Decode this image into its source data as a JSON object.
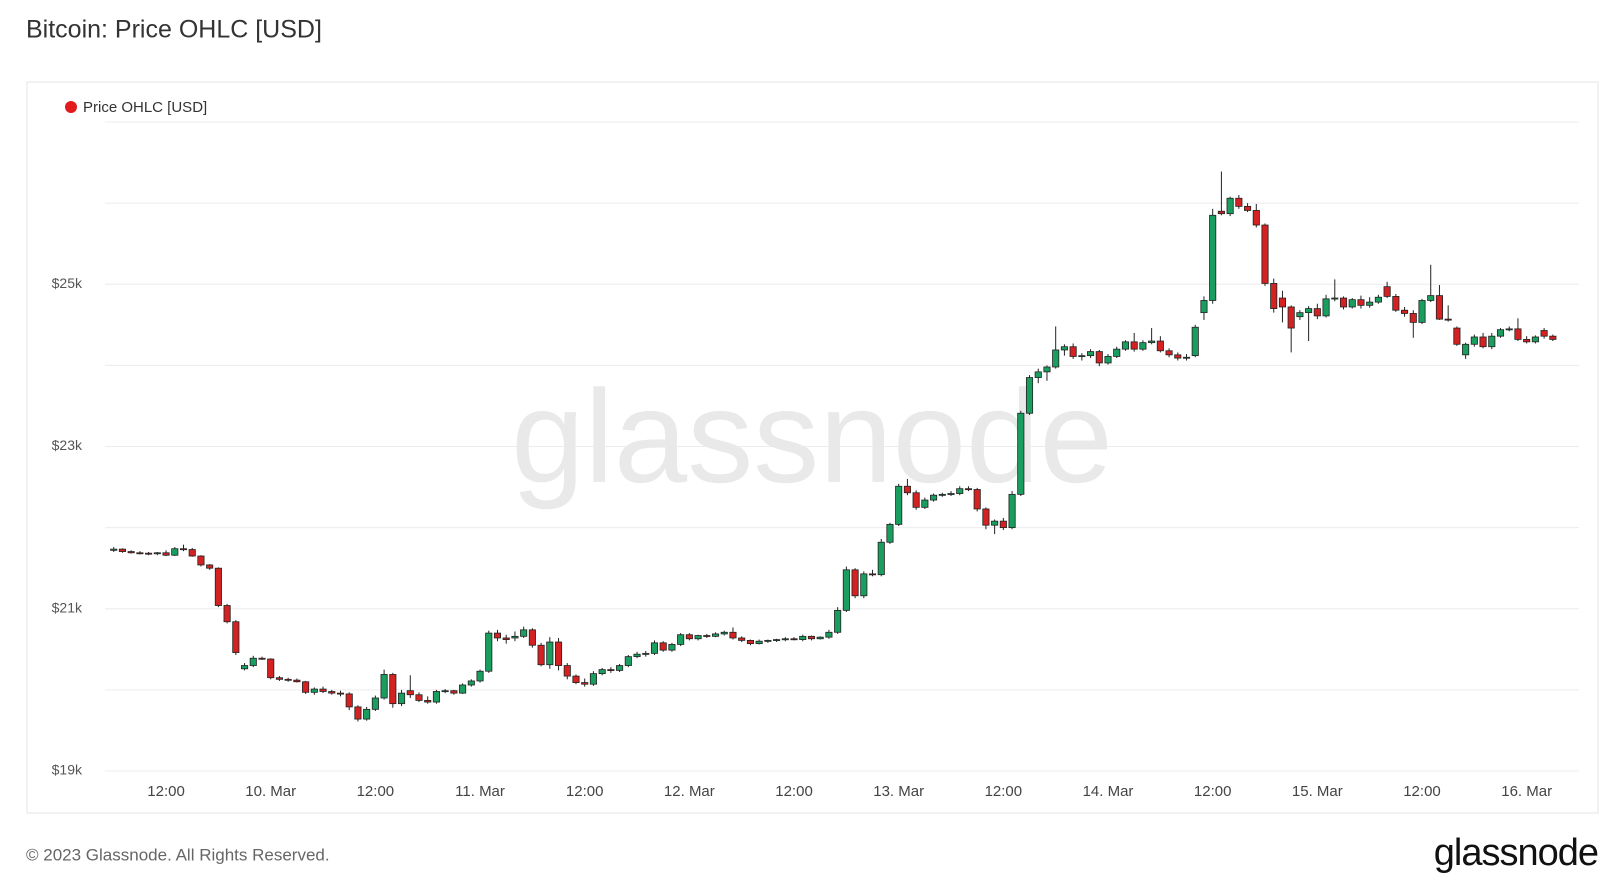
{
  "title": "Bitcoin: Price OHLC [USD]",
  "footer": "© 2023 Glassnode. All Rights Reserved.",
  "logo": "glassnode",
  "chart_data": {
    "type": "candlestick",
    "watermark": "glassnode",
    "series": [
      {
        "name": "Price OHLC [USD]",
        "color": "#e31a1c"
      }
    ],
    "up_color": "#1a9e5f",
    "down_color": "#d42121",
    "grid": true,
    "xlim": [
      "03-09 05:00",
      "03-16 06:00"
    ],
    "xticks": [
      {
        "value": "03-09 12:00",
        "label": "12:00"
      },
      {
        "value": "03-10 00:00",
        "label": "10. Mar"
      },
      {
        "value": "03-10 12:00",
        "label": "12:00"
      },
      {
        "value": "03-11 00:00",
        "label": "11. Mar"
      },
      {
        "value": "03-11 12:00",
        "label": "12:00"
      },
      {
        "value": "03-12 00:00",
        "label": "12. Mar"
      },
      {
        "value": "03-12 12:00",
        "label": "12:00"
      },
      {
        "value": "03-13 00:00",
        "label": "13. Mar"
      },
      {
        "value": "03-13 12:00",
        "label": "12:00"
      },
      {
        "value": "03-14 00:00",
        "label": "14. Mar"
      },
      {
        "value": "03-14 12:00",
        "label": "12:00"
      },
      {
        "value": "03-15 00:00",
        "label": "15. Mar"
      },
      {
        "value": "03-15 12:00",
        "label": "12:00"
      },
      {
        "value": "03-16 00:00",
        "label": "16. Mar"
      }
    ],
    "ylim": [
      19000,
      27000
    ],
    "yticks": [
      {
        "value": 19000,
        "label": "$19k"
      },
      {
        "value": 21000,
        "label": "$21k"
      },
      {
        "value": 23000,
        "label": "$23k"
      },
      {
        "value": 25000,
        "label": "$25k"
      }
    ],
    "ygrid": [
      19000,
      20000,
      21000,
      22000,
      23000,
      24000,
      25000,
      26000,
      27000
    ],
    "x": [
      "03-09 06:00",
      "03-09 07:00",
      "03-09 08:00",
      "03-09 09:00",
      "03-09 10:00",
      "03-09 11:00",
      "03-09 12:00",
      "03-09 13:00",
      "03-09 14:00",
      "03-09 15:00",
      "03-09 16:00",
      "03-09 17:00",
      "03-09 18:00",
      "03-09 19:00",
      "03-09 20:00",
      "03-09 21:00",
      "03-09 22:00",
      "03-09 23:00",
      "03-10 00:00",
      "03-10 01:00",
      "03-10 02:00",
      "03-10 03:00",
      "03-10 04:00",
      "03-10 05:00",
      "03-10 06:00",
      "03-10 07:00",
      "03-10 08:00",
      "03-10 09:00",
      "03-10 10:00",
      "03-10 11:00",
      "03-10 12:00",
      "03-10 13:00",
      "03-10 14:00",
      "03-10 15:00",
      "03-10 16:00",
      "03-10 17:00",
      "03-10 18:00",
      "03-10 19:00",
      "03-10 20:00",
      "03-10 21:00",
      "03-10 22:00",
      "03-10 23:00",
      "03-11 00:00",
      "03-11 01:00",
      "03-11 02:00",
      "03-11 03:00",
      "03-11 04:00",
      "03-11 05:00",
      "03-11 06:00",
      "03-11 07:00",
      "03-11 08:00",
      "03-11 09:00",
      "03-11 10:00",
      "03-11 11:00",
      "03-11 12:00",
      "03-11 13:00",
      "03-11 14:00",
      "03-11 15:00",
      "03-11 16:00",
      "03-11 17:00",
      "03-11 18:00",
      "03-11 19:00",
      "03-11 20:00",
      "03-11 21:00",
      "03-11 22:00",
      "03-11 23:00",
      "03-12 00:00",
      "03-12 01:00",
      "03-12 02:00",
      "03-12 03:00",
      "03-12 04:00",
      "03-12 05:00",
      "03-12 06:00",
      "03-12 07:00",
      "03-12 08:00",
      "03-12 09:00",
      "03-12 10:00",
      "03-12 11:00",
      "03-12 12:00",
      "03-12 13:00",
      "03-12 14:00",
      "03-12 15:00",
      "03-12 16:00",
      "03-12 17:00",
      "03-12 18:00",
      "03-12 19:00",
      "03-12 20:00",
      "03-12 21:00",
      "03-12 22:00",
      "03-12 23:00",
      "03-13 00:00",
      "03-13 01:00",
      "03-13 02:00",
      "03-13 03:00",
      "03-13 04:00",
      "03-13 05:00",
      "03-13 06:00",
      "03-13 07:00",
      "03-13 08:00",
      "03-13 09:00",
      "03-13 10:00",
      "03-13 11:00",
      "03-13 12:00",
      "03-13 13:00",
      "03-13 14:00",
      "03-13 15:00",
      "03-13 16:00",
      "03-13 17:00",
      "03-13 18:00",
      "03-13 19:00",
      "03-13 20:00",
      "03-13 21:00",
      "03-13 22:00",
      "03-13 23:00",
      "03-14 00:00",
      "03-14 01:00",
      "03-14 02:00",
      "03-14 03:00",
      "03-14 04:00",
      "03-14 05:00",
      "03-14 06:00",
      "03-14 07:00",
      "03-14 08:00",
      "03-14 09:00",
      "03-14 10:00",
      "03-14 11:00",
      "03-14 12:00",
      "03-14 13:00",
      "03-14 14:00",
      "03-14 15:00",
      "03-14 16:00",
      "03-14 17:00",
      "03-14 18:00",
      "03-14 19:00",
      "03-14 20:00",
      "03-14 21:00",
      "03-14 22:00",
      "03-14 23:00",
      "03-15 00:00",
      "03-15 01:00",
      "03-15 02:00",
      "03-15 03:00",
      "03-15 04:00",
      "03-15 05:00",
      "03-15 06:00",
      "03-15 07:00",
      "03-15 08:00",
      "03-15 09:00",
      "03-15 10:00",
      "03-15 11:00",
      "03-15 12:00",
      "03-15 13:00",
      "03-15 14:00",
      "03-15 15:00",
      "03-15 16:00",
      "03-15 17:00",
      "03-15 18:00",
      "03-15 19:00",
      "03-15 20:00",
      "03-15 21:00",
      "03-15 22:00",
      "03-15 23:00",
      "03-16 00:00",
      "03-16 01:00",
      "03-16 02:00",
      "03-16 03:00"
    ],
    "open": [
      21720,
      21735,
      21705,
      21690,
      21685,
      21680,
      21690,
      21660,
      21740,
      21730,
      21650,
      21540,
      21500,
      21040,
      20840,
      20260,
      20300,
      20390,
      20380,
      20150,
      20130,
      20120,
      20100,
      19970,
      20010,
      19980,
      19960,
      19950,
      19790,
      19640,
      19760,
      19900,
      20190,
      19830,
      19990,
      19940,
      19870,
      19850,
      19980,
      19990,
      19960,
      20060,
      20110,
      20230,
      20700,
      20640,
      20640,
      20660,
      20740,
      20550,
      20310,
      20590,
      20300,
      20170,
      20090,
      20070,
      20200,
      20250,
      20240,
      20300,
      20410,
      20440,
      20450,
      20580,
      20490,
      20560,
      20680,
      20630,
      20670,
      20660,
      20690,
      20710,
      20640,
      20610,
      20570,
      20600,
      20610,
      20620,
      20630,
      20620,
      20660,
      20630,
      20650,
      20710,
      20980,
      21480,
      21160,
      21430,
      21420,
      21820,
      22040,
      22510,
      22430,
      22250,
      22340,
      22400,
      22410,
      22420,
      22480,
      22470,
      22230,
      22030,
      22080,
      22000,
      22410,
      23410,
      23850,
      23920,
      23980,
      24190,
      24230,
      24110,
      24120,
      24170,
      24030,
      24110,
      24200,
      24290,
      24200,
      24280,
      24300,
      24180,
      24130,
      24090,
      24120,
      24650,
      24800,
      25900,
      25870,
      26060,
      25960,
      25910,
      25730,
      25010,
      24830,
      24720,
      24600,
      24650,
      24700,
      24610,
      24820,
      24830,
      24720,
      24810,
      24740,
      24780,
      24970,
      24850,
      24680,
      24640,
      24530,
      24800,
      24860,
      24570,
      24460,
      24130,
      24260,
      24350,
      24230,
      24360,
      24440,
      24450,
      24320,
      24290,
      24430,
      24360
    ],
    "high": [
      21760,
      21745,
      21720,
      21710,
      21700,
      21700,
      21720,
      21760,
      21790,
      21750,
      21660,
      21550,
      21510,
      21060,
      20860,
      20330,
      20420,
      20410,
      20390,
      20170,
      20150,
      20140,
      20110,
      20030,
      20040,
      20000,
      19990,
      19970,
      19810,
      19790,
      19930,
      20250,
      20210,
      20000,
      20180,
      19970,
      19920,
      20000,
      20010,
      20000,
      20080,
      20130,
      20250,
      20730,
      20740,
      20680,
      20720,
      20780,
      20760,
      20580,
      20650,
      20640,
      20330,
      20190,
      20140,
      20230,
      20270,
      20280,
      20320,
      20430,
      20470,
      20480,
      20610,
      20600,
      20580,
      20700,
      20700,
      20680,
      20690,
      20710,
      20730,
      20770,
      20660,
      20620,
      20620,
      20620,
      20630,
      20650,
      20650,
      20680,
      20670,
      20660,
      20740,
      21020,
      21520,
      21500,
      21460,
      21480,
      21860,
      22060,
      22540,
      22600,
      22460,
      22370,
      22420,
      22430,
      22450,
      22510,
      22510,
      22490,
      22250,
      22100,
      22120,
      22450,
      23440,
      23880,
      23960,
      24000,
      24480,
      24260,
      24270,
      24150,
      24200,
      24190,
      24140,
      24230,
      24310,
      24400,
      24310,
      24460,
      24360,
      24210,
      24160,
      24140,
      24500,
      24850,
      25930,
      26390,
      26080,
      26100,
      26000,
      25990,
      25750,
      25070,
      24920,
      24740,
      24680,
      24730,
      24760,
      24870,
      25060,
      24850,
      24830,
      24860,
      24840,
      24870,
      25030,
      24880,
      24720,
      24680,
      24820,
      25240,
      24990,
      24740,
      24480,
      24280,
      24380,
      24400,
      24400,
      24460,
      24480,
      24580,
      24360,
      24370,
      24460,
      24380
    ],
    "low": [
      21700,
      21690,
      21680,
      21670,
      21660,
      21660,
      21650,
      21650,
      21710,
      21640,
      21520,
      21480,
      21020,
      20820,
      20430,
      20240,
      20280,
      20370,
      20130,
      20110,
      20100,
      20090,
      19950,
      19940,
      19960,
      19940,
      19920,
      19750,
      19610,
      19620,
      19740,
      19880,
      19780,
      19800,
      19900,
      19850,
      19830,
      19830,
      19960,
      19940,
      19950,
      20040,
      20090,
      20210,
      20600,
      20570,
      20600,
      20640,
      20520,
      20290,
      20260,
      20240,
      20130,
      20070,
      20040,
      20050,
      20180,
      20210,
      20220,
      20280,
      20390,
      20410,
      20430,
      20470,
      20470,
      20540,
      20610,
      20610,
      20640,
      20650,
      20670,
      20620,
      20590,
      20550,
      20560,
      20580,
      20590,
      20600,
      20610,
      20600,
      20610,
      20620,
      20630,
      20690,
      20960,
      21130,
      21130,
      21400,
      21400,
      21800,
      22020,
      22400,
      22220,
      22230,
      22320,
      22380,
      22390,
      22400,
      22450,
      22200,
      21980,
      21920,
      21970,
      21980,
      22390,
      23390,
      23780,
      23810,
      23960,
      24120,
      24080,
      24060,
      24090,
      23990,
      24010,
      24090,
      24180,
      24170,
      24180,
      24260,
      24160,
      24100,
      24060,
      24060,
      24100,
      24560,
      24760,
      25850,
      25840,
      25930,
      25890,
      25700,
      24980,
      24650,
      24530,
      24160,
      24560,
      24300,
      24570,
      24590,
      24790,
      24690,
      24700,
      24700,
      24710,
      24760,
      24830,
      24660,
      24600,
      24340,
      24510,
      24780,
      24560,
      24540,
      24240,
      24080,
      24230,
      24210,
      24200,
      24340,
      24420,
      24300,
      24270,
      24270,
      24330,
      24300
    ],
    "close": [
      21735,
      21705,
      21690,
      21685,
      21680,
      21690,
      21660,
      21740,
      21730,
      21650,
      21540,
      21500,
      21040,
      20840,
      20460,
      20300,
      20390,
      20380,
      20150,
      20130,
      20120,
      20100,
      19970,
      20010,
      19980,
      19960,
      19950,
      19790,
      19640,
      19760,
      19900,
      20190,
      19830,
      19960,
      19940,
      19870,
      19850,
      19980,
      19990,
      19960,
      20060,
      20110,
      20230,
      20700,
      20640,
      20620,
      20660,
      20740,
      20550,
      20310,
      20590,
      20300,
      20170,
      20090,
      20070,
      20200,
      20250,
      20240,
      20300,
      20410,
      20440,
      20450,
      20580,
      20490,
      20560,
      20680,
      20630,
      20670,
      20660,
      20690,
      20710,
      20640,
      20610,
      20570,
      20600,
      20610,
      20620,
      20630,
      20620,
      20660,
      20630,
      20650,
      20710,
      20980,
      21480,
      21160,
      21430,
      21420,
      21820,
      22040,
      22510,
      22430,
      22250,
      22340,
      22400,
      22410,
      22420,
      22480,
      22470,
      22230,
      22030,
      22080,
      22000,
      22410,
      23410,
      23850,
      23920,
      23980,
      24190,
      24230,
      24110,
      24120,
      24170,
      24030,
      24110,
      24200,
      24290,
      24200,
      24280,
      24300,
      24180,
      24130,
      24090,
      24100,
      24470,
      24800,
      25850,
      25870,
      26060,
      25960,
      25910,
      25730,
      25010,
      24700,
      24720,
      24460,
      24650,
      24700,
      24610,
      24820,
      24830,
      24720,
      24810,
      24740,
      24780,
      24840,
      24850,
      24680,
      24640,
      24530,
      24800,
      24860,
      24570,
      24560,
      24260,
      24260,
      24350,
      24230,
      24360,
      24440,
      24450,
      24320,
      24290,
      24350,
      24360,
      24320
    ]
  }
}
